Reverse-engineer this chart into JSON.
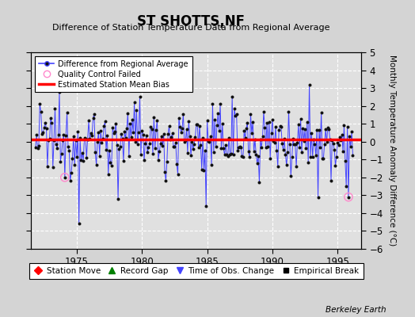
{
  "title": "ST SHOTTS,NF",
  "subtitle": "Difference of Station Temperature Data from Regional Average",
  "ylabel": "Monthly Temperature Anomaly Difference (°C)",
  "background_color": "#d4d4d4",
  "plot_background": "#e0e0e0",
  "bias_value": 0.1,
  "ylim": [
    -6,
    5
  ],
  "xlim_start": 1971.5,
  "xlim_end": 1996.8,
  "xticks": [
    1975,
    1980,
    1985,
    1990,
    1995
  ],
  "yticks_right": [
    -6,
    -5,
    -4,
    -3,
    -2,
    -1,
    0,
    1,
    2,
    3,
    4,
    5
  ],
  "yticks_left": [
    -6,
    -5,
    -4,
    -3,
    -2,
    -1,
    0,
    1,
    2,
    3,
    4,
    5
  ],
  "line_color": "#4444ff",
  "dot_color": "#111111",
  "bias_color": "#ff0000",
  "qc_fail_color": "#ff88cc",
  "legend1_items": [
    "Difference from Regional Average",
    "Quality Control Failed",
    "Estimated Station Mean Bias"
  ],
  "legend2_items": [
    "Station Move",
    "Record Gap",
    "Time of Obs. Change",
    "Empirical Break"
  ],
  "watermark": "Berkeley Earth",
  "seed": 12345
}
